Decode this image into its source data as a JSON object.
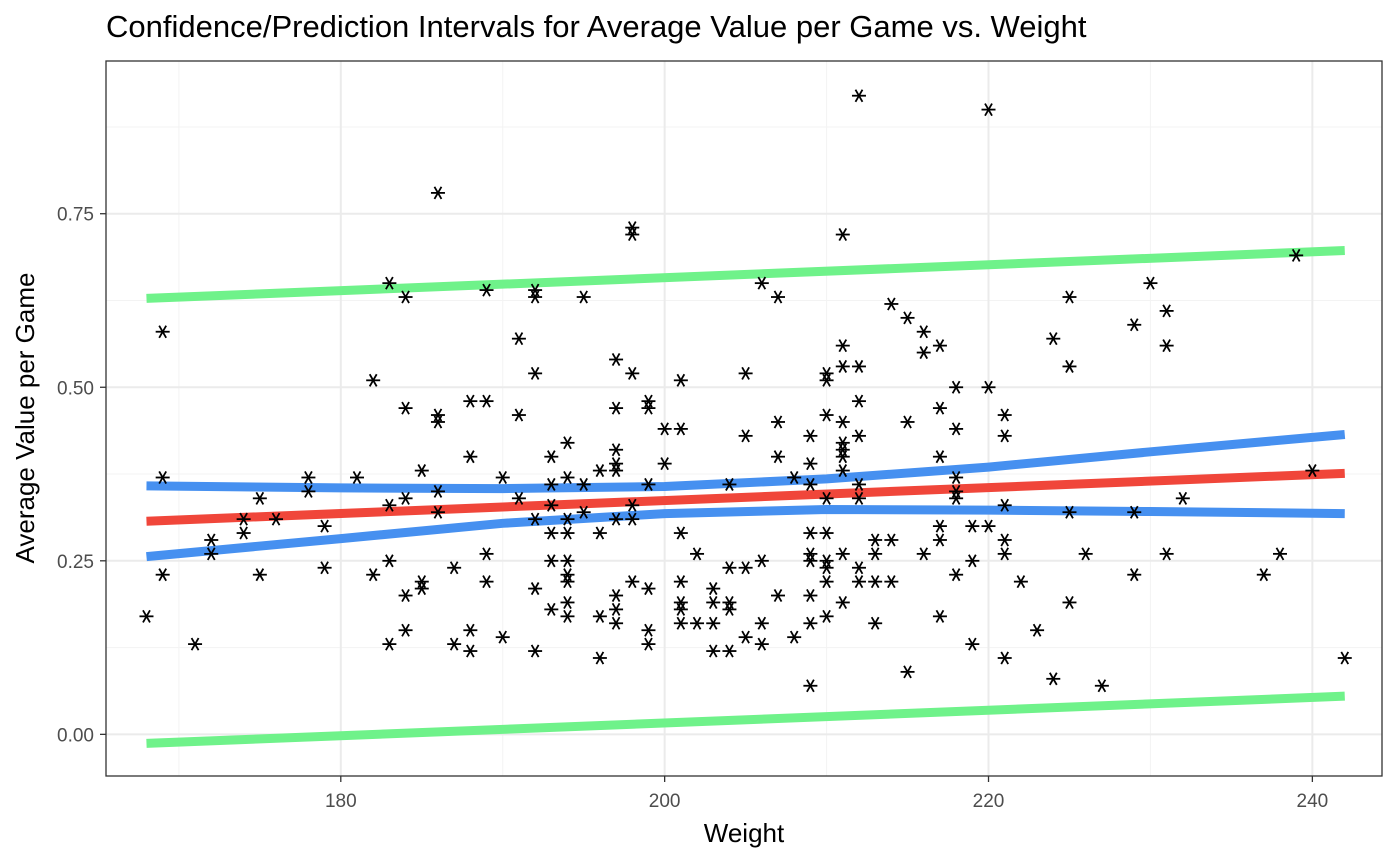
{
  "chart_data": {
    "type": "scatter",
    "title": "Confidence/Prediction Intervals for Average Value per Game vs. Weight",
    "xlabel": "Weight",
    "ylabel": "Average Value per Game",
    "xlim": [
      165.5,
      244.3
    ],
    "ylim": [
      -0.06,
      0.97
    ],
    "x_ticks": [
      180,
      200,
      220,
      240
    ],
    "x_tick_labels": [
      "180",
      "200",
      "220",
      "240"
    ],
    "y_ticks": [
      0.0,
      0.25,
      0.5,
      0.75
    ],
    "y_tick_labels": [
      "0.00",
      "0.25",
      "0.50",
      "0.75"
    ],
    "grid": true,
    "legend": "none",
    "point_marker": "asterisk",
    "point_color": "#000000",
    "points": [
      [
        168,
        0.17
      ],
      [
        169,
        0.58
      ],
      [
        169,
        0.37
      ],
      [
        169,
        0.23
      ],
      [
        171,
        0.13
      ],
      [
        172,
        0.28
      ],
      [
        172,
        0.26
      ],
      [
        174,
        0.31
      ],
      [
        174,
        0.29
      ],
      [
        175,
        0.34
      ],
      [
        175,
        0.23
      ],
      [
        176,
        0.31
      ],
      [
        178,
        0.37
      ],
      [
        178,
        0.35
      ],
      [
        179,
        0.3
      ],
      [
        179,
        0.24
      ],
      [
        181,
        0.37
      ],
      [
        182,
        0.51
      ],
      [
        182,
        0.23
      ],
      [
        183,
        0.65
      ],
      [
        183,
        0.33
      ],
      [
        183,
        0.25
      ],
      [
        183,
        0.13
      ],
      [
        184,
        0.63
      ],
      [
        184,
        0.47
      ],
      [
        184,
        0.34
      ],
      [
        184,
        0.2
      ],
      [
        184,
        0.15
      ],
      [
        185,
        0.38
      ],
      [
        185,
        0.22
      ],
      [
        185,
        0.21
      ],
      [
        186,
        0.78
      ],
      [
        186,
        0.46
      ],
      [
        186,
        0.45
      ],
      [
        186,
        0.35
      ],
      [
        186,
        0.32
      ],
      [
        187,
        0.24
      ],
      [
        187,
        0.13
      ],
      [
        188,
        0.48
      ],
      [
        188,
        0.4
      ],
      [
        188,
        0.15
      ],
      [
        188,
        0.12
      ],
      [
        189,
        0.64
      ],
      [
        189,
        0.48
      ],
      [
        189,
        0.26
      ],
      [
        189,
        0.22
      ],
      [
        190,
        0.37
      ],
      [
        190,
        0.14
      ],
      [
        191,
        0.57
      ],
      [
        191,
        0.46
      ],
      [
        191,
        0.34
      ],
      [
        192,
        0.64
      ],
      [
        192,
        0.63
      ],
      [
        192,
        0.52
      ],
      [
        192,
        0.31
      ],
      [
        192,
        0.21
      ],
      [
        192,
        0.12
      ],
      [
        193,
        0.4
      ],
      [
        193,
        0.36
      ],
      [
        193,
        0.33
      ],
      [
        193,
        0.29
      ],
      [
        193,
        0.25
      ],
      [
        193,
        0.18
      ],
      [
        194,
        0.42
      ],
      [
        194,
        0.37
      ],
      [
        194,
        0.31
      ],
      [
        194,
        0.29
      ],
      [
        194,
        0.25
      ],
      [
        194,
        0.23
      ],
      [
        194,
        0.22
      ],
      [
        194,
        0.19
      ],
      [
        194,
        0.17
      ],
      [
        195,
        0.63
      ],
      [
        195,
        0.36
      ],
      [
        195,
        0.32
      ],
      [
        196,
        0.38
      ],
      [
        196,
        0.29
      ],
      [
        196,
        0.17
      ],
      [
        196,
        0.11
      ],
      [
        197,
        0.54
      ],
      [
        197,
        0.47
      ],
      [
        197,
        0.41
      ],
      [
        197,
        0.39
      ],
      [
        197,
        0.38
      ],
      [
        197,
        0.31
      ],
      [
        197,
        0.2
      ],
      [
        197,
        0.18
      ],
      [
        197,
        0.16
      ],
      [
        198,
        0.73
      ],
      [
        198,
        0.72
      ],
      [
        198,
        0.52
      ],
      [
        198,
        0.33
      ],
      [
        198,
        0.31
      ],
      [
        198,
        0.22
      ],
      [
        199,
        0.48
      ],
      [
        199,
        0.47
      ],
      [
        199,
        0.36
      ],
      [
        199,
        0.21
      ],
      [
        199,
        0.15
      ],
      [
        199,
        0.13
      ],
      [
        200,
        0.44
      ],
      [
        200,
        0.39
      ],
      [
        201,
        0.51
      ],
      [
        201,
        0.44
      ],
      [
        201,
        0.29
      ],
      [
        201,
        0.22
      ],
      [
        201,
        0.19
      ],
      [
        201,
        0.18
      ],
      [
        201,
        0.16
      ],
      [
        202,
        0.26
      ],
      [
        202,
        0.16
      ],
      [
        203,
        0.21
      ],
      [
        203,
        0.19
      ],
      [
        203,
        0.16
      ],
      [
        203,
        0.12
      ],
      [
        204,
        0.36
      ],
      [
        204,
        0.24
      ],
      [
        204,
        0.19
      ],
      [
        204,
        0.18
      ],
      [
        204,
        0.12
      ],
      [
        205,
        0.52
      ],
      [
        205,
        0.43
      ],
      [
        205,
        0.24
      ],
      [
        205,
        0.14
      ],
      [
        206,
        0.65
      ],
      [
        206,
        0.25
      ],
      [
        206,
        0.16
      ],
      [
        206,
        0.13
      ],
      [
        207,
        0.63
      ],
      [
        207,
        0.45
      ],
      [
        207,
        0.4
      ],
      [
        207,
        0.2
      ],
      [
        208,
        0.37
      ],
      [
        208,
        0.14
      ],
      [
        209,
        0.43
      ],
      [
        209,
        0.39
      ],
      [
        209,
        0.36
      ],
      [
        209,
        0.29
      ],
      [
        209,
        0.26
      ],
      [
        209,
        0.25
      ],
      [
        209,
        0.2
      ],
      [
        209,
        0.16
      ],
      [
        209,
        0.07
      ],
      [
        210,
        0.52
      ],
      [
        210,
        0.51
      ],
      [
        210,
        0.46
      ],
      [
        210,
        0.34
      ],
      [
        210,
        0.29
      ],
      [
        210,
        0.25
      ],
      [
        210,
        0.24
      ],
      [
        210,
        0.22
      ],
      [
        210,
        0.17
      ],
      [
        211,
        0.72
      ],
      [
        211,
        0.56
      ],
      [
        211,
        0.53
      ],
      [
        211,
        0.45
      ],
      [
        211,
        0.42
      ],
      [
        211,
        0.41
      ],
      [
        211,
        0.4
      ],
      [
        211,
        0.38
      ],
      [
        211,
        0.26
      ],
      [
        211,
        0.19
      ],
      [
        212,
        0.92
      ],
      [
        212,
        0.53
      ],
      [
        212,
        0.48
      ],
      [
        212,
        0.43
      ],
      [
        212,
        0.36
      ],
      [
        212,
        0.34
      ],
      [
        212,
        0.24
      ],
      [
        212,
        0.22
      ],
      [
        213,
        0.28
      ],
      [
        213,
        0.26
      ],
      [
        213,
        0.22
      ],
      [
        213,
        0.16
      ],
      [
        214,
        0.62
      ],
      [
        214,
        0.28
      ],
      [
        214,
        0.22
      ],
      [
        215,
        0.6
      ],
      [
        215,
        0.45
      ],
      [
        215,
        0.09
      ],
      [
        216,
        0.58
      ],
      [
        216,
        0.55
      ],
      [
        216,
        0.26
      ],
      [
        217,
        0.56
      ],
      [
        217,
        0.47
      ],
      [
        217,
        0.4
      ],
      [
        217,
        0.3
      ],
      [
        217,
        0.28
      ],
      [
        217,
        0.17
      ],
      [
        218,
        0.5
      ],
      [
        218,
        0.44
      ],
      [
        218,
        0.37
      ],
      [
        218,
        0.35
      ],
      [
        218,
        0.34
      ],
      [
        218,
        0.23
      ],
      [
        219,
        0.3
      ],
      [
        219,
        0.25
      ],
      [
        219,
        0.13
      ],
      [
        220,
        0.9
      ],
      [
        220,
        0.5
      ],
      [
        220,
        0.3
      ],
      [
        221,
        0.46
      ],
      [
        221,
        0.43
      ],
      [
        221,
        0.33
      ],
      [
        221,
        0.28
      ],
      [
        221,
        0.26
      ],
      [
        221,
        0.11
      ],
      [
        222,
        0.22
      ],
      [
        223,
        0.15
      ],
      [
        224,
        0.57
      ],
      [
        224,
        0.08
      ],
      [
        225,
        0.63
      ],
      [
        225,
        0.53
      ],
      [
        225,
        0.32
      ],
      [
        225,
        0.19
      ],
      [
        226,
        0.26
      ],
      [
        227,
        0.07
      ],
      [
        229,
        0.59
      ],
      [
        229,
        0.32
      ],
      [
        229,
        0.23
      ],
      [
        230,
        0.65
      ],
      [
        231,
        0.61
      ],
      [
        231,
        0.56
      ],
      [
        231,
        0.26
      ],
      [
        232,
        0.34
      ],
      [
        237,
        0.23
      ],
      [
        238,
        0.26
      ],
      [
        239,
        0.69
      ],
      [
        240,
        0.38
      ],
      [
        242,
        0.11
      ]
    ],
    "series": [
      {
        "role": "fit",
        "color": "#F0463A",
        "x": [
          168,
          242
        ],
        "y": [
          0.307,
          0.376
        ]
      },
      {
        "role": "confidence-upper",
        "color": "#4690F0",
        "x": [
          168,
          180,
          190,
          200,
          210,
          220,
          230,
          242
        ],
        "y": [
          0.358,
          0.355,
          0.354,
          0.357,
          0.368,
          0.385,
          0.407,
          0.432
        ]
      },
      {
        "role": "confidence-lower",
        "color": "#4690F0",
        "x": [
          168,
          180,
          190,
          200,
          210,
          220,
          230,
          242
        ],
        "y": [
          0.256,
          0.282,
          0.304,
          0.318,
          0.324,
          0.323,
          0.321,
          0.318
        ]
      },
      {
        "role": "prediction-upper",
        "color": "#6FF28A",
        "x": [
          168,
          242
        ],
        "y": [
          0.628,
          0.697
        ]
      },
      {
        "role": "prediction-lower",
        "color": "#6FF28A",
        "x": [
          168,
          242
        ],
        "y": [
          -0.013,
          0.055
        ]
      }
    ]
  }
}
